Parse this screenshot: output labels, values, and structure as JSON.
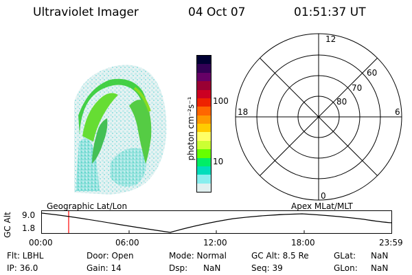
{
  "header": {
    "instrument": "Ultraviolet Imager",
    "date": "04 Oct 07",
    "time": "01:51:37 UT"
  },
  "image_panel": {
    "description_icon": "auroral-image"
  },
  "colorbar": {
    "unit_label": "photon cm⁻²s⁻¹",
    "tick_100": "100",
    "tick_10": "10",
    "colors": [
      "#000033",
      "#330055",
      "#660066",
      "#990033",
      "#cc0022",
      "#ee2200",
      "#ff6600",
      "#ff9900",
      "#ffcc00",
      "#ffff66",
      "#ccff33",
      "#66ff00",
      "#00ee66",
      "#00ddbb",
      "#88eeee",
      "#e0f0f0"
    ]
  },
  "polar_plot": {
    "mlt_labels": {
      "top": "12",
      "left": "18",
      "right": "6",
      "bottom": "0"
    },
    "lat_labels": [
      "60",
      "70",
      "80"
    ]
  },
  "timeline": {
    "y_axis_label": "GC Alt",
    "y_ticks": [
      "9.0",
      "1.8"
    ],
    "left_title": "Geographic Lat/Lon",
    "right_title": "Apex MLat/MLT",
    "x_ticks": [
      "00:00",
      "06:00",
      "12:00",
      "18:00",
      "23:59"
    ],
    "marker_color": "#ff0000"
  },
  "status": {
    "row1": {
      "flt": "Flt: LBHL",
      "door": "Door: Open",
      "mode": "Mode: Normal",
      "gcalt": "GC Alt: 8.5 Re",
      "glat_label": "GLat:",
      "glat_val": "NaN"
    },
    "row2": {
      "ip": "IP: 36.0",
      "gain": "Gain: 14",
      "dsp_label": "Dsp:",
      "dsp_val": "NaN",
      "seq": "Seq: 39",
      "glon_label": "GLon:",
      "glon_val": "NaN"
    }
  }
}
